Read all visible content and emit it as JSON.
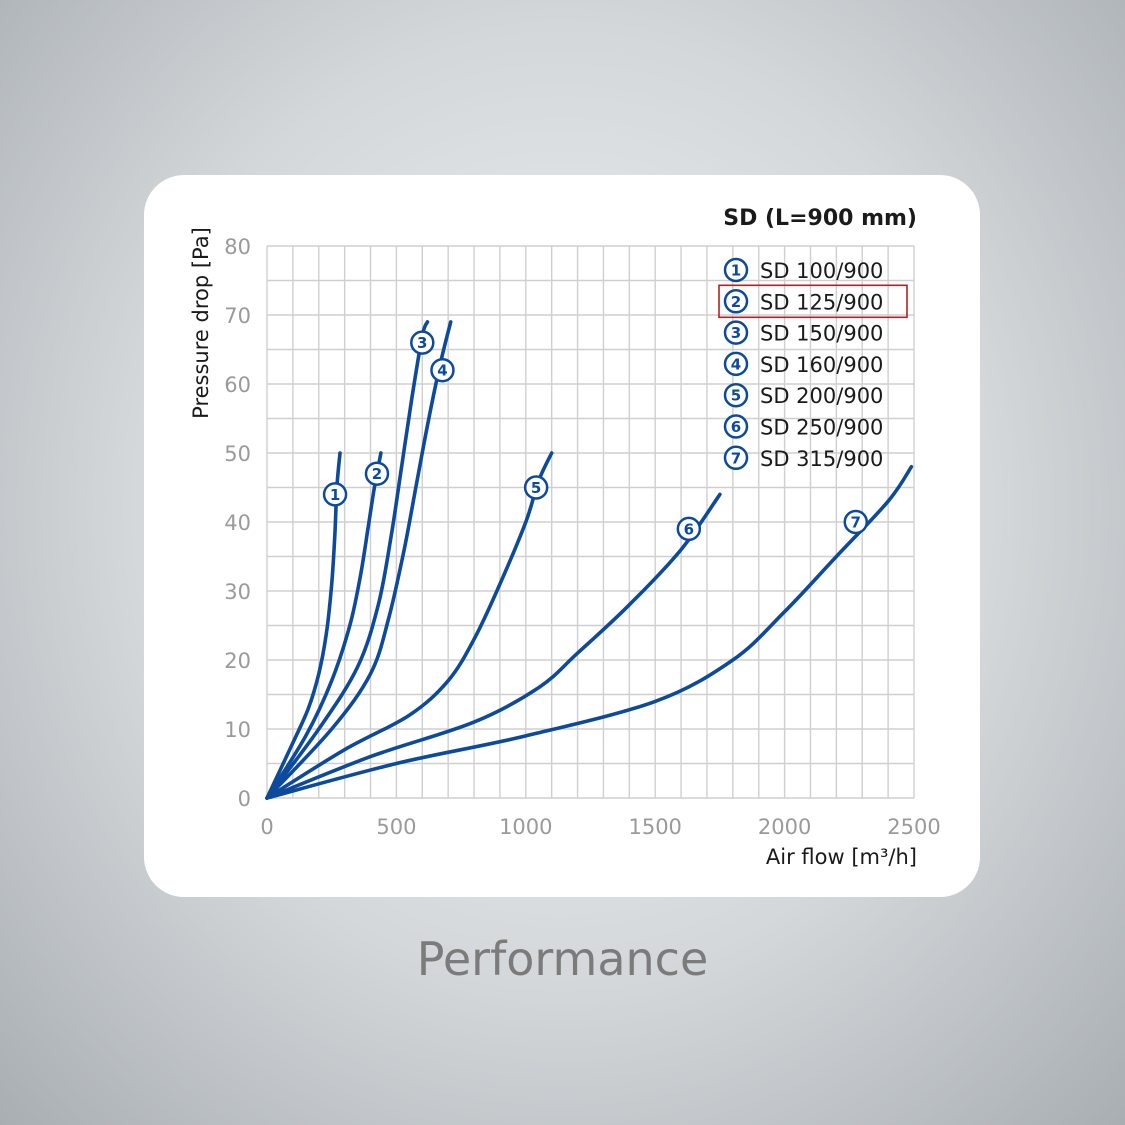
{
  "caption": "Performance",
  "colors": {
    "series": "#0d4a9c",
    "grid": "#cfcfcf",
    "highlight": "#b22222"
  },
  "chart_data": {
    "type": "line",
    "title": "SD (L=900 mm)",
    "xlabel": "Air flow [m³/h]",
    "ylabel": "Pressure drop [Pa]",
    "xlim": [
      0,
      2500
    ],
    "ylim": [
      0,
      80
    ],
    "xticks": [
      0,
      500,
      1000,
      1500,
      2000,
      2500
    ],
    "yticks": [
      0,
      10,
      20,
      30,
      40,
      50,
      60,
      70,
      80
    ],
    "grid": true,
    "legend_position": "top-right",
    "highlighted_legend_item": "SD 125/900",
    "series": [
      {
        "name": "SD 100/900",
        "marker": "1",
        "label_at": [
          263,
          44
        ],
        "points": [
          [
            0,
            0
          ],
          [
            100,
            8
          ],
          [
            160,
            13
          ],
          [
            200,
            18
          ],
          [
            230,
            24
          ],
          [
            250,
            31
          ],
          [
            262,
            38
          ],
          [
            270,
            45
          ],
          [
            282,
            50
          ]
        ]
      },
      {
        "name": "SD 125/900",
        "marker": "2",
        "label_at": [
          425,
          47
        ],
        "points": [
          [
            0,
            0
          ],
          [
            150,
            9
          ],
          [
            250,
            17
          ],
          [
            320,
            25
          ],
          [
            360,
            32
          ],
          [
            390,
            39
          ],
          [
            415,
            45
          ],
          [
            440,
            50
          ]
        ]
      },
      {
        "name": "SD 150/900",
        "marker": "3",
        "label_at": [
          600,
          66
        ],
        "points": [
          [
            0,
            0
          ],
          [
            200,
            10
          ],
          [
            350,
            19
          ],
          [
            430,
            28
          ],
          [
            480,
            38
          ],
          [
            520,
            48
          ],
          [
            560,
            58
          ],
          [
            600,
            67
          ],
          [
            620,
            69
          ]
        ]
      },
      {
        "name": "SD 160/900",
        "marker": "4",
        "label_at": [
          678,
          62
        ],
        "points": [
          [
            0,
            0
          ],
          [
            250,
            10
          ],
          [
            400,
            18
          ],
          [
            470,
            26
          ],
          [
            530,
            36
          ],
          [
            580,
            46
          ],
          [
            620,
            54
          ],
          [
            670,
            63
          ],
          [
            710,
            69
          ]
        ]
      },
      {
        "name": "SD 200/900",
        "marker": "5",
        "label_at": [
          1040,
          45
        ],
        "points": [
          [
            0,
            0
          ],
          [
            300,
            7
          ],
          [
            550,
            12
          ],
          [
            700,
            17
          ],
          [
            800,
            23
          ],
          [
            900,
            31
          ],
          [
            1000,
            40
          ],
          [
            1050,
            46
          ],
          [
            1100,
            50
          ]
        ]
      },
      {
        "name": "SD 250/900",
        "marker": "6",
        "label_at": [
          1630,
          39
        ],
        "points": [
          [
            0,
            0
          ],
          [
            400,
            6
          ],
          [
            800,
            11
          ],
          [
            1050,
            16
          ],
          [
            1200,
            21
          ],
          [
            1400,
            28
          ],
          [
            1600,
            36
          ],
          [
            1750,
            44
          ]
        ]
      },
      {
        "name": "SD 315/900",
        "marker": "7",
        "label_at": [
          2275,
          40
        ],
        "points": [
          [
            0,
            0
          ],
          [
            500,
            5
          ],
          [
            1000,
            9
          ],
          [
            1500,
            14
          ],
          [
            1800,
            20
          ],
          [
            2000,
            27
          ],
          [
            2200,
            35
          ],
          [
            2400,
            43
          ],
          [
            2490,
            48
          ]
        ]
      }
    ]
  }
}
